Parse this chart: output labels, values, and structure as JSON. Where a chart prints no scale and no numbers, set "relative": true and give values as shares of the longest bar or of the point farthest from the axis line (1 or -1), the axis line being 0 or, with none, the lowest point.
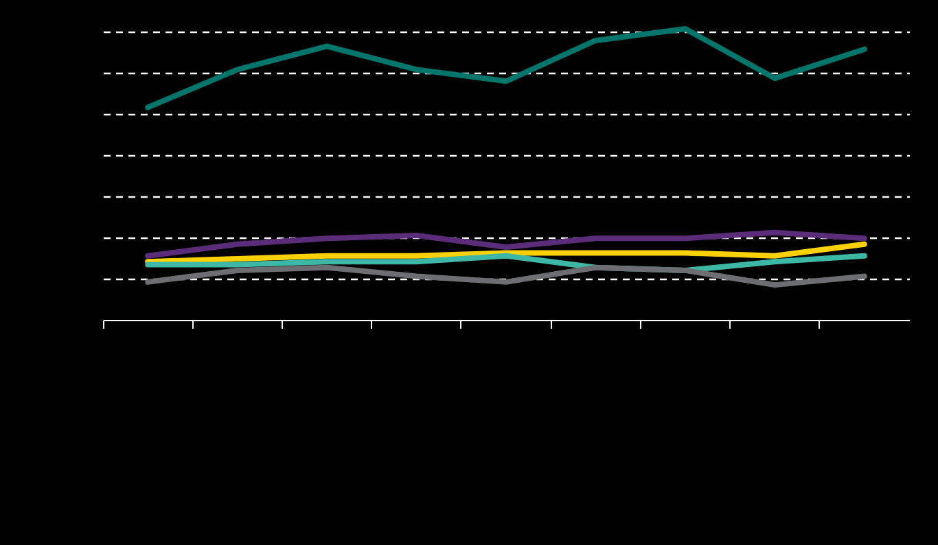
{
  "chart_data": {
    "type": "line",
    "relative": true,
    "grid": "y",
    "line_style": "solid",
    "marker": "none",
    "categories": [
      null,
      null,
      null,
      null,
      null,
      null,
      null,
      null,
      null
    ],
    "series": [
      {
        "color": "#00756c",
        "values": [
          0.73,
          0.86,
          0.94,
          0.86,
          0.82,
          0.96,
          1.0,
          0.83,
          0.93
        ]
      },
      {
        "color": "#5b2c7a",
        "values": [
          0.22,
          0.26,
          0.28,
          0.29,
          0.25,
          0.28,
          0.28,
          0.3,
          0.28
        ]
      },
      {
        "color": "#ffd100",
        "values": [
          0.2,
          0.21,
          0.22,
          0.22,
          0.23,
          0.23,
          0.23,
          0.22,
          0.26
        ]
      },
      {
        "color": "#3db8a6",
        "values": [
          0.19,
          0.19,
          0.2,
          0.2,
          0.22,
          0.18,
          0.17,
          0.2,
          0.22
        ]
      },
      {
        "color": "#6d6e71",
        "values": [
          0.13,
          0.17,
          0.18,
          0.15,
          0.13,
          0.18,
          0.17,
          0.12,
          0.15
        ]
      }
    ]
  }
}
